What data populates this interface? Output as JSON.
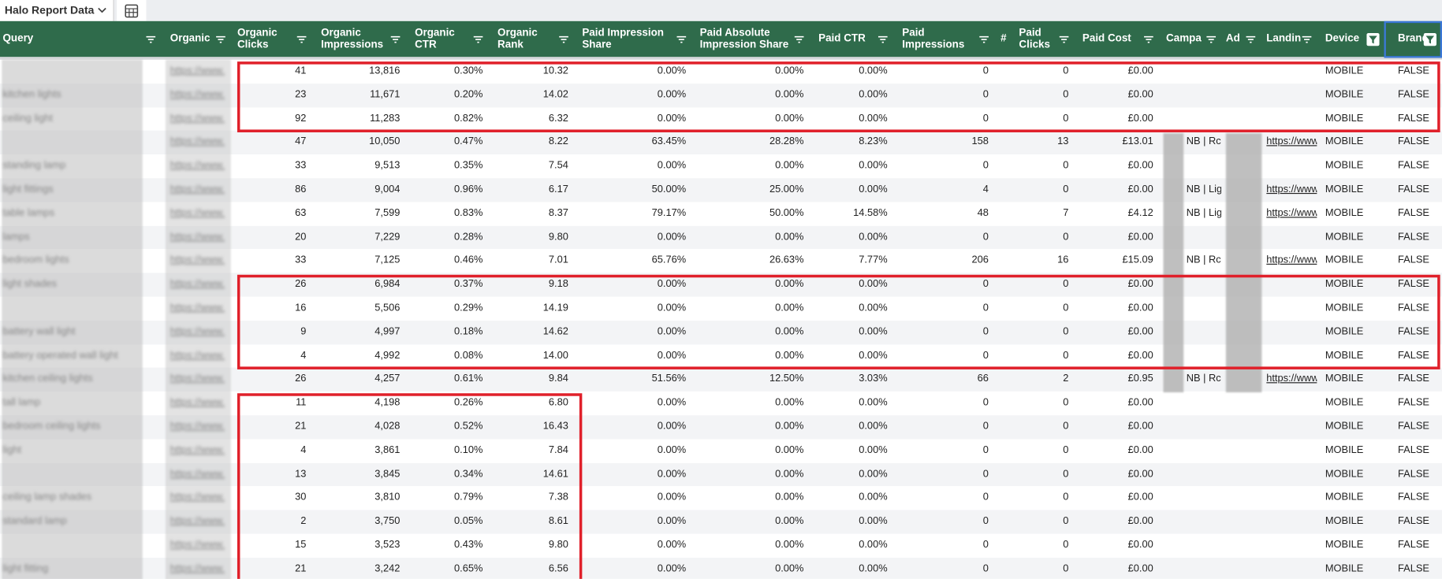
{
  "sheet_tab": "Halo Report Data",
  "columns": [
    {
      "label": "Query"
    },
    {
      "label": "Organic"
    },
    {
      "label": "Organic Clicks"
    },
    {
      "label": "Organic Impressions"
    },
    {
      "label": "Organic CTR"
    },
    {
      "label": "Organic Rank"
    },
    {
      "label": "Paid Impression Share"
    },
    {
      "label": "Paid Absolute Impression Share"
    },
    {
      "label": "Paid CTR"
    },
    {
      "label": "Paid Impressions"
    },
    {
      "label": "Paid Clicks",
      "icon": "#"
    },
    {
      "label": "Paid Cost"
    },
    {
      "label": "Campa"
    },
    {
      "label": "Ad"
    },
    {
      "label": "Landin"
    },
    {
      "label": "Device"
    },
    {
      "label": "Brand"
    }
  ],
  "rows": [
    [
      null,
      "https://www.",
      "41",
      "13,816",
      "0.30%",
      "10.32",
      "0.00%",
      "0.00%",
      "0.00%",
      "0",
      "0",
      "£0.00",
      null,
      null,
      null,
      "MOBILE",
      "FALSE"
    ],
    [
      "kitchen lights",
      "https://www.",
      "23",
      "11,671",
      "0.20%",
      "14.02",
      "0.00%",
      "0.00%",
      "0.00%",
      "0",
      "0",
      "£0.00",
      null,
      null,
      null,
      "MOBILE",
      "FALSE"
    ],
    [
      "ceiling light",
      "https://www.",
      "92",
      "11,283",
      "0.82%",
      "6.32",
      "0.00%",
      "0.00%",
      "0.00%",
      "0",
      "0",
      "£0.00",
      null,
      null,
      null,
      "MOBILE",
      "FALSE"
    ],
    [
      null,
      "https://www.",
      "47",
      "10,050",
      "0.47%",
      "8.22",
      "63.45%",
      "28.28%",
      "8.23%",
      "158",
      "13",
      "£13.01",
      "NB | Rc",
      null,
      "https://www",
      "MOBILE",
      "FALSE"
    ],
    [
      "standing lamp",
      "https://www.",
      "33",
      "9,513",
      "0.35%",
      "7.54",
      "0.00%",
      "0.00%",
      "0.00%",
      "0",
      "0",
      "£0.00",
      null,
      null,
      null,
      "MOBILE",
      "FALSE"
    ],
    [
      "light fittings",
      "https://www.",
      "86",
      "9,004",
      "0.96%",
      "6.17",
      "50.00%",
      "25.00%",
      "0.00%",
      "4",
      "0",
      "£0.00",
      "NB | Lig",
      null,
      "https://www",
      "MOBILE",
      "FALSE"
    ],
    [
      "table lamps",
      "https://www.",
      "63",
      "7,599",
      "0.83%",
      "8.37",
      "79.17%",
      "50.00%",
      "14.58%",
      "48",
      "7",
      "£4.12",
      "NB | Lig",
      null,
      "https://www",
      "MOBILE",
      "FALSE"
    ],
    [
      "lamps",
      "https://www.",
      "20",
      "7,229",
      "0.28%",
      "9.80",
      "0.00%",
      "0.00%",
      "0.00%",
      "0",
      "0",
      "£0.00",
      null,
      null,
      null,
      "MOBILE",
      "FALSE"
    ],
    [
      "bedroom lights",
      "https://www.",
      "33",
      "7,125",
      "0.46%",
      "7.01",
      "65.76%",
      "26.63%",
      "7.77%",
      "206",
      "16",
      "£15.09",
      "NB | Rc",
      null,
      "https://www",
      "MOBILE",
      "FALSE"
    ],
    [
      "light shades",
      "https://www.",
      "26",
      "6,984",
      "0.37%",
      "9.18",
      "0.00%",
      "0.00%",
      "0.00%",
      "0",
      "0",
      "£0.00",
      null,
      null,
      null,
      "MOBILE",
      "FALSE"
    ],
    [
      null,
      "https://www.",
      "16",
      "5,506",
      "0.29%",
      "14.19",
      "0.00%",
      "0.00%",
      "0.00%",
      "0",
      "0",
      "£0.00",
      null,
      null,
      null,
      "MOBILE",
      "FALSE"
    ],
    [
      "battery wall light",
      "https://www.",
      "9",
      "4,997",
      "0.18%",
      "14.62",
      "0.00%",
      "0.00%",
      "0.00%",
      "0",
      "0",
      "£0.00",
      null,
      null,
      null,
      "MOBILE",
      "FALSE"
    ],
    [
      "battery operated wall light",
      "https://www.",
      "4",
      "4,992",
      "0.08%",
      "14.00",
      "0.00%",
      "0.00%",
      "0.00%",
      "0",
      "0",
      "£0.00",
      null,
      null,
      null,
      "MOBILE",
      "FALSE"
    ],
    [
      "kitchen ceiling lights",
      "https://www.",
      "26",
      "4,257",
      "0.61%",
      "9.84",
      "51.56%",
      "12.50%",
      "3.03%",
      "66",
      "2",
      "£0.95",
      "NB | Rc",
      null,
      "https://www",
      "MOBILE",
      "FALSE"
    ],
    [
      "tall lamp",
      "https://www.",
      "11",
      "4,198",
      "0.26%",
      "6.80",
      "0.00%",
      "0.00%",
      "0.00%",
      "0",
      "0",
      "£0.00",
      null,
      null,
      null,
      "MOBILE",
      "FALSE"
    ],
    [
      "bedroom ceiling lights",
      "https://www.",
      "21",
      "4,028",
      "0.52%",
      "16.43",
      "0.00%",
      "0.00%",
      "0.00%",
      "0",
      "0",
      "£0.00",
      null,
      null,
      null,
      "MOBILE",
      "FALSE"
    ],
    [
      "light",
      "https://www.",
      "4",
      "3,861",
      "0.10%",
      "7.84",
      "0.00%",
      "0.00%",
      "0.00%",
      "0",
      "0",
      "£0.00",
      null,
      null,
      null,
      "MOBILE",
      "FALSE"
    ],
    [
      null,
      "https://www.",
      "13",
      "3,845",
      "0.34%",
      "14.61",
      "0.00%",
      "0.00%",
      "0.00%",
      "0",
      "0",
      "£0.00",
      null,
      null,
      null,
      "MOBILE",
      "FALSE"
    ],
    [
      "ceiling lamp shades",
      "https://www.",
      "30",
      "3,810",
      "0.79%",
      "7.38",
      "0.00%",
      "0.00%",
      "0.00%",
      "0",
      "0",
      "£0.00",
      null,
      null,
      null,
      "MOBILE",
      "FALSE"
    ],
    [
      "standard lamp",
      "https://www.",
      "2",
      "3,750",
      "0.05%",
      "8.61",
      "0.00%",
      "0.00%",
      "0.00%",
      "0",
      "0",
      "£0.00",
      null,
      null,
      null,
      "MOBILE",
      "FALSE"
    ],
    [
      null,
      "https://www.",
      "15",
      "3,523",
      "0.43%",
      "9.80",
      "0.00%",
      "0.00%",
      "0.00%",
      "0",
      "0",
      "£0.00",
      null,
      null,
      null,
      "MOBILE",
      "FALSE"
    ],
    [
      "light fitting",
      "https://www.",
      "21",
      "3,242",
      "0.65%",
      "6.56",
      "0.00%",
      "0.00%",
      "0.00%",
      "0",
      "0",
      "£0.00",
      null,
      null,
      null,
      "MOBILE",
      "FALSE"
    ]
  ]
}
